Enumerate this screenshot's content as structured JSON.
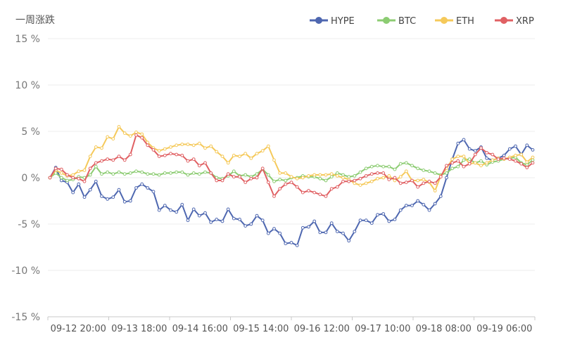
{
  "chart_data": {
    "type": "line",
    "title": "一周涨跌",
    "xlabel": "",
    "ylabel": "",
    "ylim": [
      -15,
      15
    ],
    "y_ticks": [
      15,
      10,
      5,
      0,
      -5,
      -10,
      -15
    ],
    "y_tick_labels": [
      "15 %",
      "10 %",
      "5 %",
      "0 %",
      "-5 %",
      "-10 %",
      "-15 %"
    ],
    "x_tick_labels": [
      "09-12 20:00",
      "09-13 18:00",
      "09-14 16:00",
      "09-15 14:00",
      "09-16 12:00",
      "09-17 10:00",
      "09-18 08:00",
      "09-19 06:00"
    ],
    "grid": true,
    "legend_position": "top-right",
    "series": [
      {
        "name": "HYPE",
        "color": "#4e67b0",
        "values": [
          0,
          1.1,
          -0.3,
          -0.5,
          -1.6,
          -0.7,
          -2.1,
          -1.3,
          -0.4,
          -2,
          -2.3,
          -2.1,
          -1.3,
          -2.6,
          -2.5,
          -1.1,
          -0.7,
          -1.1,
          -1.5,
          -3.5,
          -3,
          -3.5,
          -3.7,
          -2.9,
          -4.6,
          -3.4,
          -4.1,
          -3.8,
          -4.8,
          -4.5,
          -4.7,
          -3.4,
          -4.4,
          -4.5,
          -5.2,
          -5,
          -4.1,
          -4.6,
          -6,
          -5.5,
          -6,
          -7.1,
          -7,
          -7.3,
          -5.4,
          -5.3,
          -4.7,
          -5.9,
          -5.9,
          -4.9,
          -5.8,
          -6,
          -6.8,
          -5.8,
          -4.6,
          -4.6,
          -4.9,
          -4,
          -3.9,
          -4.7,
          -4.5,
          -3.5,
          -3,
          -3,
          -2.5,
          -2.9,
          -3.5,
          -2.8,
          -2,
          0,
          2,
          3.7,
          4.1,
          3.1,
          2.9,
          3.3,
          2.1,
          1.9,
          2.1,
          2.4,
          3.1,
          3.4,
          2.5,
          3.5,
          3
        ]
      },
      {
        "name": "BTC",
        "color": "#8ccc72",
        "values": [
          0,
          0.5,
          0,
          -0.3,
          -0.2,
          0.1,
          0,
          0.3,
          1.2,
          0.4,
          0.6,
          0.4,
          0.6,
          0.4,
          0.5,
          0.7,
          0.6,
          0.4,
          0.4,
          0.3,
          0.5,
          0.5,
          0.6,
          0.6,
          0.3,
          0.5,
          0.4,
          0.6,
          0.5,
          0,
          -0.1,
          0.2,
          0.7,
          0.2,
          0.3,
          0.1,
          0.4,
          0.9,
          0.3,
          -0.4,
          -0.2,
          -0.3,
          0,
          0,
          0.2,
          0.1,
          0.1,
          -0.1,
          -0.3,
          0.1,
          0.5,
          0.3,
          0.1,
          0.2,
          0.6,
          1,
          1.2,
          1.3,
          1.2,
          1.2,
          0.9,
          1.5,
          1.6,
          1.3,
          1,
          0.8,
          0.7,
          0.5,
          0.3,
          0.5,
          1,
          1.2,
          1.9,
          2,
          1.6,
          1.8,
          1.4,
          1.7,
          1.8,
          2,
          2.1,
          2.2,
          1.6,
          1.4,
          1.9
        ]
      },
      {
        "name": "ETH",
        "color": "#f5c95a",
        "values": [
          0,
          0.8,
          0.5,
          0.2,
          0.3,
          0.7,
          0.8,
          2.3,
          3.3,
          3.2,
          4.4,
          4.2,
          5.5,
          4.8,
          4.5,
          4.9,
          4.7,
          3.8,
          3.2,
          2.9,
          3.1,
          3.3,
          3.5,
          3.6,
          3.6,
          3.5,
          3.7,
          3.2,
          3.4,
          2.8,
          2.3,
          1.6,
          2.4,
          2.3,
          2.6,
          2.1,
          2.6,
          2.9,
          3.4,
          1.9,
          0.5,
          0.5,
          0.1,
          -0.1,
          0,
          0.2,
          0.3,
          0.3,
          0.3,
          0.4,
          0.2,
          0,
          -0.2,
          -0.6,
          -0.8,
          -0.6,
          -0.4,
          -0.1,
          0,
          0.2,
          -0.3,
          0.1,
          0.7,
          -0.3,
          -0.3,
          -0.2,
          -0.5,
          -1.4,
          0.2,
          1,
          2,
          2.3,
          2.3,
          1.5,
          1.6,
          1.3,
          1.6,
          1.9,
          2.1,
          2,
          2.2,
          2.4,
          2.5,
          1.7,
          2.2
        ]
      },
      {
        "name": "XRP",
        "color": "#e06063",
        "values": [
          0,
          1,
          0.9,
          0.3,
          0,
          -0.1,
          -0.4,
          1,
          1.6,
          1.8,
          2,
          1.9,
          2.3,
          1.9,
          2.5,
          4.6,
          4.3,
          3.5,
          3,
          2.3,
          2.4,
          2.6,
          2.5,
          2.4,
          1.8,
          2,
          1.3,
          1.6,
          0.5,
          -0.3,
          -0.3,
          0.4,
          0.1,
          0.1,
          -0.5,
          -0.1,
          0,
          1,
          -0.5,
          -2,
          -1.2,
          -0.7,
          -0.5,
          -1,
          -1.6,
          -1.4,
          -1.6,
          -1.8,
          -2,
          -1.2,
          -1,
          -0.4,
          -0.4,
          -0.3,
          -0.1,
          0.2,
          0.4,
          0.5,
          0.5,
          -0.2,
          0,
          -0.6,
          -0.5,
          -0.3,
          -1,
          -0.6,
          -0.4,
          -0.6,
          0.1,
          1.3,
          1.6,
          1.8,
          1.2,
          1.5,
          2.5,
          3.2,
          2.7,
          2.5,
          2,
          2.1,
          2,
          1.8,
          1.5,
          1.1,
          1.6
        ]
      }
    ]
  }
}
